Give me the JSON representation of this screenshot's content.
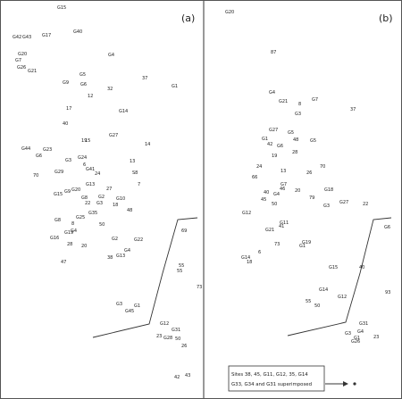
{
  "panels": [
    {
      "label": "(a)"
    },
    {
      "label": "(b)"
    }
  ],
  "legend": {
    "line1": "Sites 38, 45, G11, G12, 35, G14",
    "line2": "G33, G34 and G31 superimposed"
  },
  "points_a": [
    "G15",
    "G42",
    "G43",
    "G17",
    "G40",
    "G20",
    "G7",
    "G4",
    "G26",
    "G21",
    "G5",
    "37",
    "G9",
    "G6",
    "32",
    "12",
    "G1",
    "G14",
    "17",
    "40",
    "G44",
    "15",
    "G27",
    "G23",
    "G6",
    "G24",
    "19",
    "6",
    "G3",
    "70",
    "G29",
    "G41",
    "13",
    "14",
    "S8",
    "24",
    "7",
    "G15",
    "G13",
    "G9",
    "27",
    "G8",
    "G20",
    "22",
    "G2",
    "G3",
    "G10",
    "G25",
    "G35",
    "G19",
    "G16",
    "18",
    "50",
    "G8",
    "8",
    "G4",
    "G22",
    "48",
    "G2",
    "20",
    "28",
    "47",
    "38",
    "G4",
    "G13",
    "69",
    "55",
    "73",
    "G3",
    "G1",
    "G45",
    "G12",
    "23",
    "G31",
    "50",
    "26",
    "42",
    "43",
    "G28",
    "55"
  ],
  "points_b": [
    "G20",
    "87",
    "G4",
    "G21",
    "8",
    "G7",
    "G3",
    "37",
    "G27",
    "G5",
    "G1",
    "42",
    "G6",
    "48",
    "G5",
    "19",
    "13",
    "24",
    "28",
    "G4",
    "G12",
    "G3",
    "26",
    "20",
    "66",
    "70",
    "G7",
    "50",
    "40",
    "41",
    "G21",
    "G19",
    "73",
    "G1",
    "G14",
    "18",
    "6",
    "79",
    "G18",
    "G27",
    "22",
    "G6",
    "40",
    "G11",
    "G14",
    "G12",
    "55",
    "50",
    "G4",
    "G26",
    "G3",
    "G1",
    "G31",
    "23",
    "93",
    "46",
    "45",
    "G15"
  ]
}
